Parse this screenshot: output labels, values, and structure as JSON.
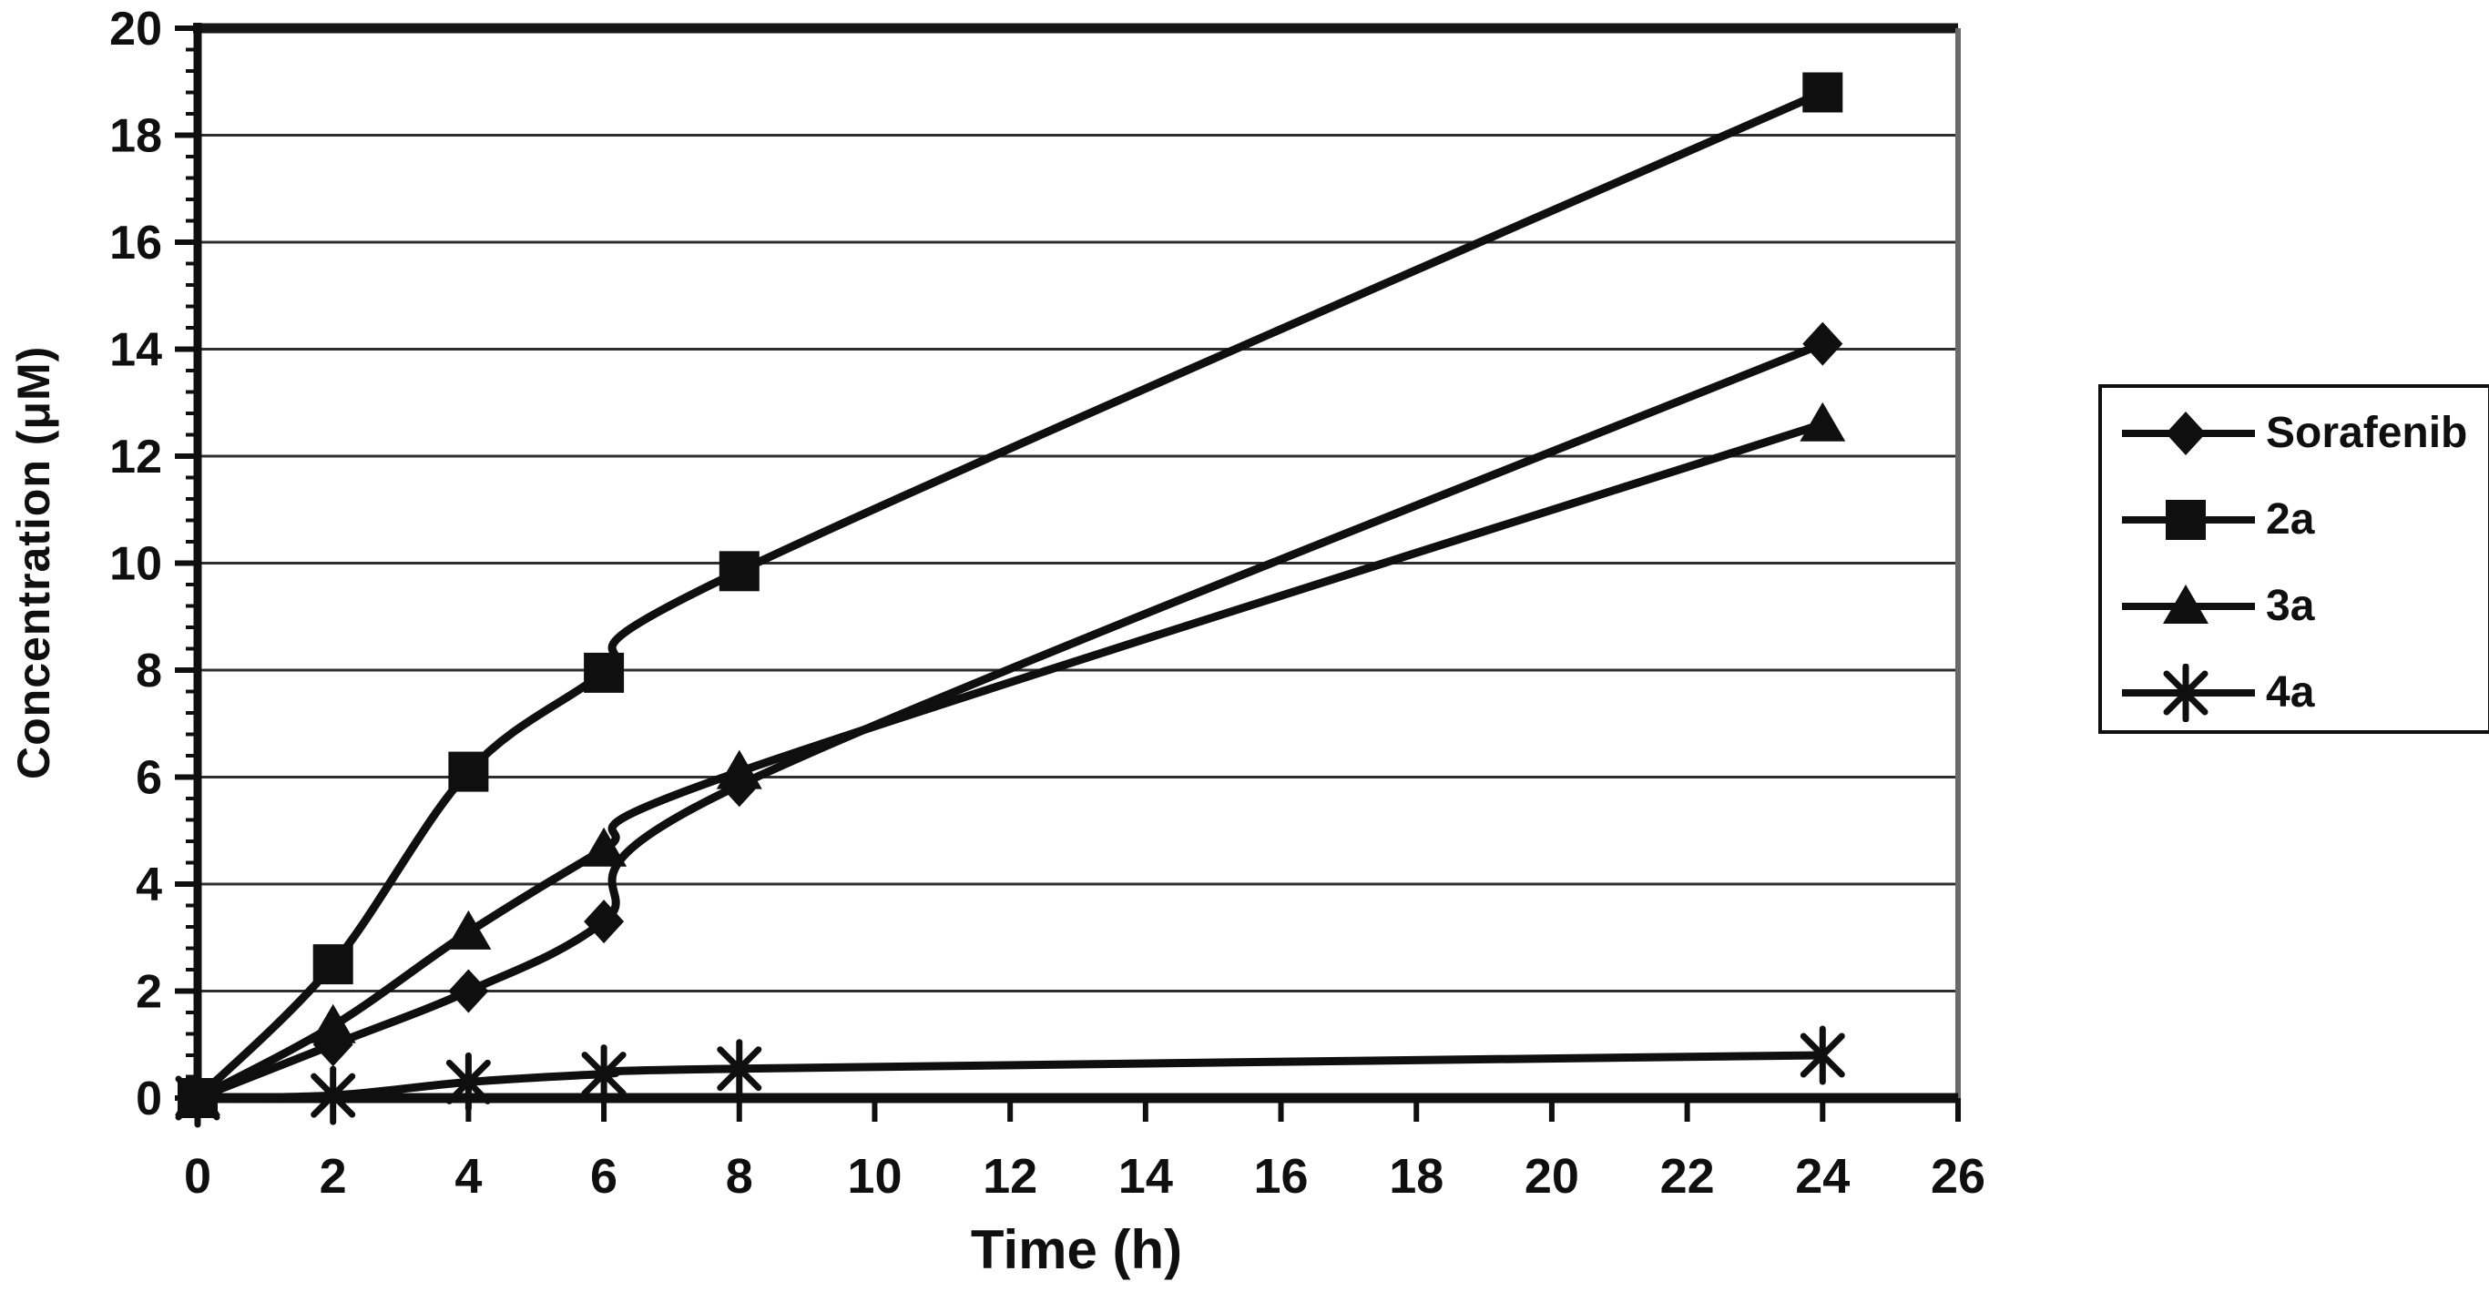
{
  "figure": {
    "background": "#ffffff",
    "ink_color": "#0f0f0f",
    "grid_color": "#2e2e2e",
    "right_border_color": "#6a6a6a"
  },
  "chart_data": {
    "type": "line",
    "title": "",
    "xlabel": "Time (h)",
    "ylabel": "Concentration (μM)",
    "xlim": [
      0,
      26
    ],
    "ylim": [
      0,
      20
    ],
    "x_ticks": [
      0,
      2,
      4,
      6,
      8,
      10,
      12,
      14,
      16,
      18,
      20,
      22,
      24,
      26
    ],
    "y_ticks": [
      0,
      2,
      4,
      6,
      8,
      10,
      12,
      14,
      16,
      18,
      20
    ],
    "y_minor_tick_step": 0.4,
    "grid": "horizontal lines at every major y tick",
    "legend_position": "right",
    "x": [
      0,
      2,
      4,
      6,
      8,
      24
    ],
    "series": [
      {
        "name": "Sorafenib",
        "marker": "diamond",
        "values": [
          0,
          1.0,
          2.0,
          3.3,
          5.85,
          14.1
        ]
      },
      {
        "name": "2a",
        "marker": "square",
        "values": [
          0,
          2.5,
          6.1,
          7.95,
          9.85,
          18.8
        ]
      },
      {
        "name": "3a",
        "marker": "triangle",
        "values": [
          0,
          1.35,
          3.1,
          4.65,
          6.1,
          12.6
        ]
      },
      {
        "name": "4a",
        "marker": "asterisk",
        "values": [
          0,
          0.05,
          0.3,
          0.45,
          0.55,
          0.8
        ]
      }
    ]
  }
}
